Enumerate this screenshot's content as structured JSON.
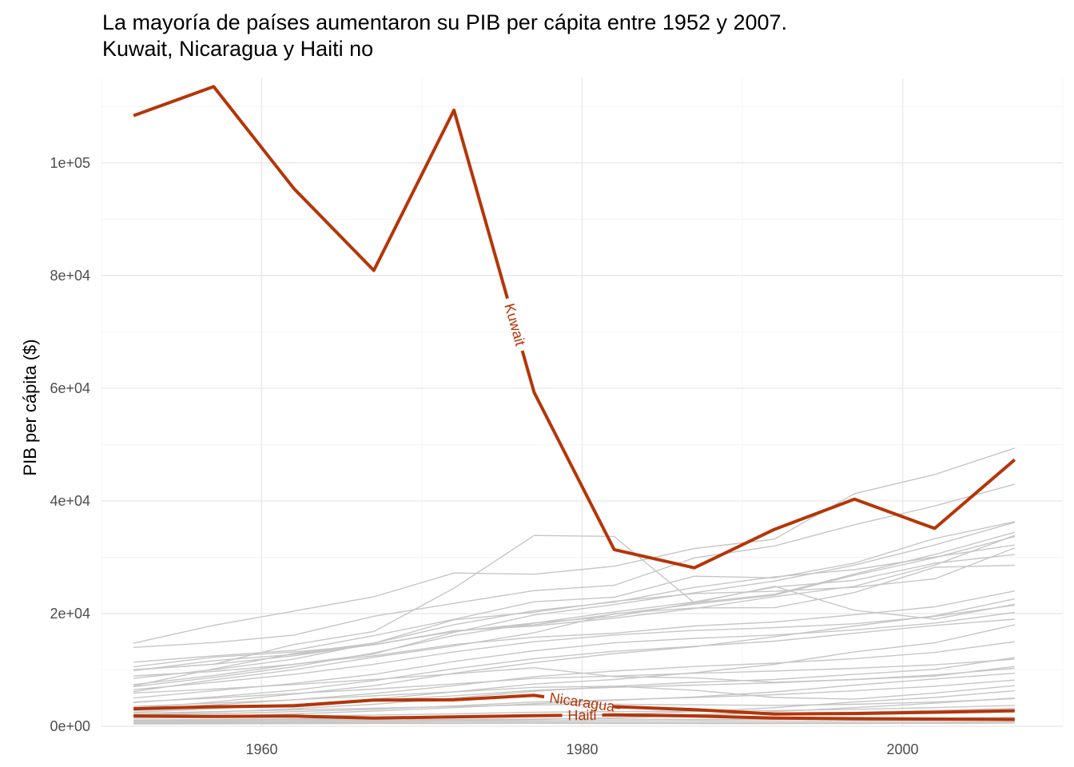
{
  "chart_data": {
    "type": "line",
    "title": "La mayoría de países aumentaron su PIB per cápita entre 1952 y 2007.\nKuwait, Nicaragua y Haiti no",
    "xlabel": "",
    "ylabel": "PIB per cápita ($)",
    "xlim": [
      1950,
      2010
    ],
    "ylim": [
      0,
      115000
    ],
    "x_ticks": [
      1960,
      1980,
      2000
    ],
    "y_ticks": [
      0,
      20000,
      40000,
      60000,
      80000,
      100000
    ],
    "y_tick_labels": [
      "0e+00",
      "2e+04",
      "4e+04",
      "6e+04",
      "8e+04",
      "1e+05"
    ],
    "grid": true,
    "legend": "none",
    "highlight_color": "#b53508",
    "background_color": "#c6c6c6",
    "x": [
      1952,
      1957,
      1962,
      1967,
      1972,
      1977,
      1982,
      1987,
      1992,
      1997,
      2002,
      2007
    ],
    "series": [
      {
        "name": "Kuwait",
        "highlight": true,
        "label_x": 1975.8,
        "values": [
          108382,
          113523,
          95458,
          80895,
          109348,
          59265,
          31354,
          28118,
          34933,
          40301,
          35110,
          47307
        ]
      },
      {
        "name": "Nicaragua",
        "highlight": true,
        "label_x": 1980.0,
        "values": [
          3112,
          3457,
          3634,
          4644,
          4689,
          5486,
          3471,
          2955,
          2171,
          2253,
          2475,
          2749
        ]
      },
      {
        "name": "Haiti",
        "highlight": true,
        "label_x": 1980.0,
        "values": [
          1840,
          1726,
          1797,
          1452,
          1654,
          1875,
          2012,
          1823,
          1456,
          1342,
          1270,
          1202
        ]
      },
      {
        "values": [
          14734,
          17909,
          20431,
          22966,
          27195,
          26982,
          28397,
          31541,
          33203,
          41283,
          44684,
          49357
        ]
      },
      {
        "values": [
          10039,
          11000,
          14500,
          16800,
          24500,
          33860,
          33693,
          21905,
          24841,
          20586,
          19014,
          21655
        ]
      },
      {
        "values": [
          13990,
          14847,
          16173,
          19530,
          21806,
          24072,
          25009,
          29884,
          32004,
          35767,
          39097,
          42951
        ]
      },
      {
        "values": [
          10557,
          12247,
          13175,
          14463,
          16903,
          18000,
          19900,
          21664,
          23270,
          26800,
          29900,
          33692
        ]
      },
      {
        "values": [
          11367,
          12490,
          13462,
          16077,
          18970,
          22090,
          22899,
          26627,
          26342,
          28955,
          33329,
          36319
        ]
      },
      {
        "values": [
          9980,
          11000,
          12500,
          14526,
          16789,
          18334,
          19477,
          21889,
          23424,
          26998,
          30485,
          34435
        ]
      },
      {
        "values": [
          8939,
          9734,
          10996,
          12834,
          16662,
          19749,
          21598,
          23688,
          25768,
          28604,
          32166,
          36181
        ]
      },
      {
        "values": [
          9867,
          11636,
          12754,
          14448,
          16946,
          17802,
          19182,
          20884,
          23003,
          24837,
          28605,
          33860
        ]
      },
      {
        "values": [
          8527,
          10023,
          11924,
          14745,
          18887,
          20248,
          22163,
          23551,
          23943,
          24676,
          26160,
          31633
        ]
      },
      {
        "values": [
          7029,
          8663,
          10561,
          12999,
          16107,
          18293,
          20293,
          22066,
          24704,
          25890,
          28926,
          30470
        ]
      },
      {
        "values": [
          7144,
          10188,
          12902,
          14746,
          18016,
          20512,
          22032,
          24639,
          26505,
          27789,
          30035,
          32170
        ]
      },
      {
        "values": [
          6138,
          8243,
          10022,
          12270,
          14255,
          16589,
          19980,
          20996,
          21050,
          23723,
          28205,
          28570
        ]
      },
      {
        "values": [
          7400,
          9000,
          11000,
          12500,
          14500,
          15800,
          16500,
          17800,
          18500,
          19800,
          21200,
          24000
        ]
      },
      {
        "values": [
          6500,
          7800,
          9200,
          11000,
          13200,
          15000,
          16200,
          17000,
          17500,
          18200,
          19500,
          21500
        ]
      },
      {
        "values": [
          5000,
          6300,
          7600,
          9200,
          11500,
          13400,
          14800,
          15600,
          16200,
          17100,
          18300,
          20200
        ]
      },
      {
        "values": [
          4200,
          5200,
          6400,
          8100,
          10200,
          12000,
          13300,
          14200,
          15100,
          16500,
          17900,
          19000
        ]
      },
      {
        "values": [
          3200,
          4300,
          5700,
          7200,
          9400,
          11300,
          12900,
          14100,
          15900,
          17800,
          19600,
          22600
        ]
      },
      {
        "values": [
          3000,
          3800,
          4700,
          5800,
          7200,
          8800,
          9800,
          10600,
          11200,
          12000,
          13100,
          15000
        ]
      },
      {
        "values": [
          2500,
          3100,
          3800,
          4800,
          6100,
          7500,
          8300,
          9500,
          11000,
          13200,
          14800,
          18000
        ]
      },
      {
        "values": [
          5900,
          6600,
          7400,
          8300,
          9300,
          10400,
          8800,
          8600,
          7800,
          8300,
          8900,
          10600
        ]
      },
      {
        "values": [
          4300,
          5000,
          5800,
          6600,
          7500,
          8500,
          8900,
          9400,
          9800,
          10300,
          10900,
          11900
        ]
      },
      {
        "values": [
          2800,
          3300,
          3900,
          4600,
          5400,
          6400,
          6900,
          7300,
          7700,
          8300,
          9100,
          10300
        ]
      },
      {
        "values": [
          2000,
          2500,
          3100,
          3900,
          5000,
          6200,
          7100,
          7800,
          8300,
          9200,
          10100,
          12200
        ]
      },
      {
        "values": [
          1900,
          2200,
          2600,
          3000,
          3600,
          4300,
          4700,
          5100,
          5600,
          6300,
          7100,
          8200
        ]
      },
      {
        "values": [
          1500,
          1800,
          2200,
          2700,
          3300,
          4000,
          4600,
          5200,
          6100,
          7300,
          8400,
          9400
        ]
      },
      {
        "values": [
          3500,
          4100,
          4700,
          5400,
          6100,
          6900,
          7100,
          6400,
          5100,
          4800,
          5900,
          7200
        ]
      },
      {
        "values": [
          1000,
          1100,
          1200,
          1300,
          1500,
          1800,
          2100,
          2600,
          3300,
          4300,
          5100,
          6300
        ]
      },
      {
        "values": [
          600,
          700,
          800,
          900,
          1000,
          1200,
          1500,
          1900,
          2600,
          3300,
          4100,
          5000
        ]
      },
      {
        "values": [
          2300,
          2600,
          2900,
          3200,
          3500,
          3800,
          3900,
          3800,
          3700,
          3900,
          4300,
          4900
        ]
      },
      {
        "values": [
          1400,
          1600,
          1800,
          2000,
          2200,
          2500,
          2600,
          2700,
          2800,
          3000,
          3300,
          3700
        ]
      },
      {
        "values": [
          1100,
          1200,
          1300,
          1500,
          1700,
          1900,
          2000,
          2100,
          2300,
          2500,
          2800,
          3200
        ]
      },
      {
        "values": [
          900,
          950,
          1000,
          1100,
          1200,
          1300,
          1300,
          1200,
          1200,
          1300,
          1400,
          1600
        ]
      },
      {
        "values": [
          700,
          750,
          800,
          850,
          950,
          1000,
          1000,
          950,
          900,
          950,
          1000,
          1100
        ]
      },
      {
        "values": [
          500,
          550,
          600,
          650,
          700,
          750,
          700,
          650,
          600,
          650,
          700,
          800
        ]
      },
      {
        "values": [
          400,
          420,
          450,
          480,
          500,
          520,
          500,
          480,
          470,
          500,
          520,
          560
        ]
      }
    ]
  }
}
